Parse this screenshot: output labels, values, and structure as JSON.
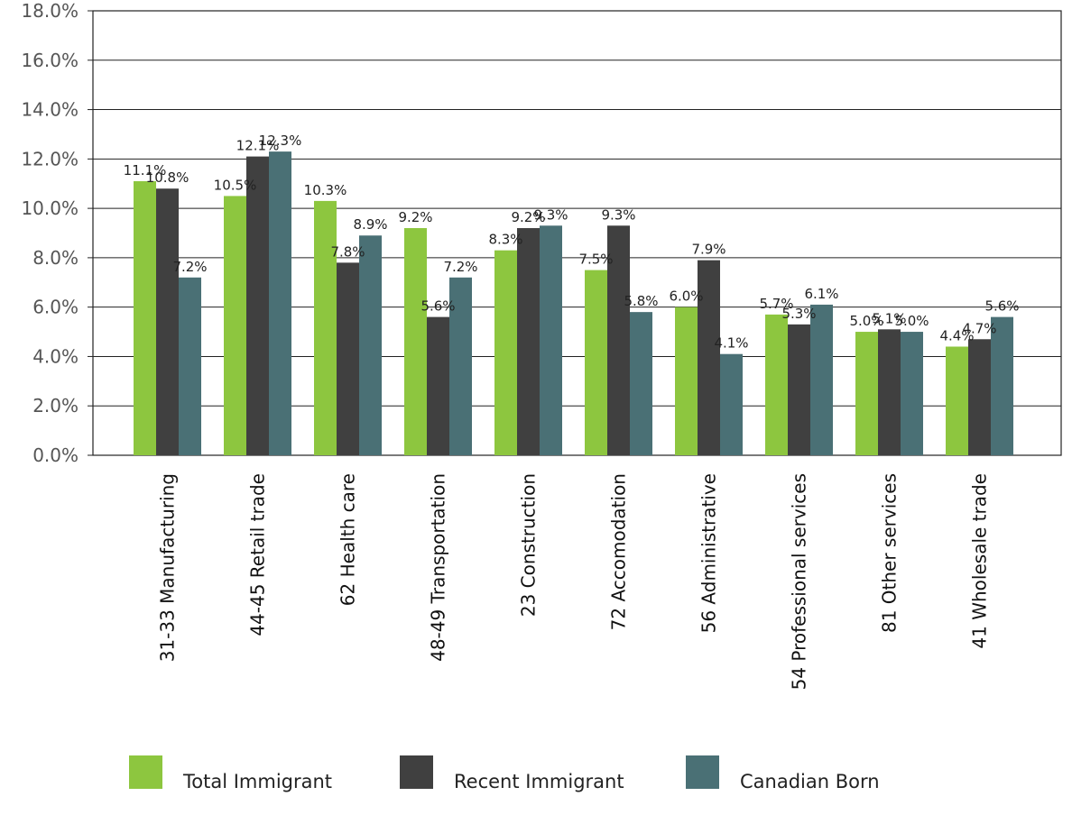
{
  "chart_data": {
    "type": "bar",
    "categories": [
      "31-33 Manufacturing",
      "44-45 Retail trade",
      "62 Health care",
      "48-49 Transportation",
      "23 Construction",
      "72 Accomodation",
      "56 Administrative",
      "54 Professional services",
      "81 Other services",
      "41 Wholesale trade"
    ],
    "series": [
      {
        "name": "Total Immigrant",
        "color": "#8dc63f",
        "values": [
          11.1,
          10.5,
          10.3,
          9.2,
          8.3,
          7.5,
          6.0,
          5.7,
          5.0,
          4.4
        ],
        "labels": [
          "11.1%",
          "10.5%",
          "10.3%",
          "9.2%",
          "8.3%",
          "7.5%",
          "6.0%",
          "5.7%",
          "5.0%",
          "4.4%"
        ]
      },
      {
        "name": "Recent Immigrant",
        "color": "#404040",
        "values": [
          10.8,
          12.1,
          7.8,
          5.6,
          9.2,
          9.3,
          7.9,
          5.3,
          5.1,
          4.7
        ],
        "labels": [
          "10.8%",
          "12.1%",
          "7.8%",
          "5.6%",
          "9.2%",
          "9.3%",
          "7.9%",
          "5.3%",
          "5.1%",
          "4.7%"
        ]
      },
      {
        "name": "Canadian Born",
        "color": "#4a7075",
        "values": [
          7.2,
          12.3,
          8.9,
          7.2,
          9.3,
          5.8,
          4.1,
          6.1,
          5.0,
          5.6
        ],
        "labels": [
          "7.2%",
          "12.3%",
          "8.9%",
          "7.2%",
          "9.3%",
          "5.8%",
          "4.1%",
          "6.1%",
          "5.0%",
          "5.6%"
        ]
      }
    ],
    "y_ticks": [
      {
        "value": 0,
        "label": "0.0%"
      },
      {
        "value": 2,
        "label": "2.0%"
      },
      {
        "value": 4,
        "label": "4.0%"
      },
      {
        "value": 6,
        "label": "6.0%"
      },
      {
        "value": 8,
        "label": "8.0%"
      },
      {
        "value": 10,
        "label": "10.0%"
      },
      {
        "value": 12,
        "label": "12.0%"
      },
      {
        "value": 14,
        "label": "14.0%"
      },
      {
        "value": 16,
        "label": "16.0%"
      },
      {
        "value": 18,
        "label": "18.0%"
      }
    ],
    "ylim": [
      0,
      18
    ],
    "title": "",
    "xlabel": "",
    "ylabel": "",
    "grid": true,
    "legend_position": "bottom"
  }
}
